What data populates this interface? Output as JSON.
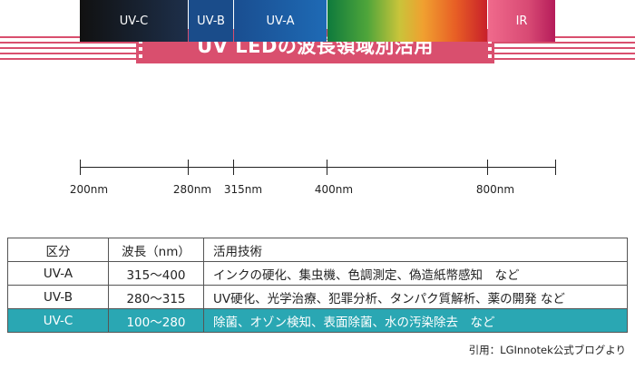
{
  "title": "UV LEDの波長領域別活用",
  "spectrum": {
    "segments": [
      {
        "label": "UV-C"
      },
      {
        "label": "UV-B"
      },
      {
        "label": "UV-A"
      },
      {
        "label": ""
      },
      {
        "label": "IR"
      }
    ],
    "ticks": [
      "200nm",
      "280nm",
      "315nm",
      "400nm",
      "800nm"
    ]
  },
  "colors": {
    "banner": "#d94f6e",
    "highlight_row": "#2aa7b3"
  },
  "table": {
    "headers": [
      "区分",
      "波長（nm）",
      "活用技術"
    ],
    "rows": [
      [
        "UV-A",
        "315～400",
        "インクの硬化、集虫機、色調測定、偽造紙幣感知　など"
      ],
      [
        "UV-B",
        "280～315",
        "UV硬化、光学治療、犯罪分析、タンパク質解析、薬の開発 など"
      ],
      [
        "UV-C",
        "100～280",
        "除菌、オゾン検知、表面除菌、水の汚染除去　など"
      ]
    ]
  },
  "citation": "引用：LGInnotek公式ブログより"
}
